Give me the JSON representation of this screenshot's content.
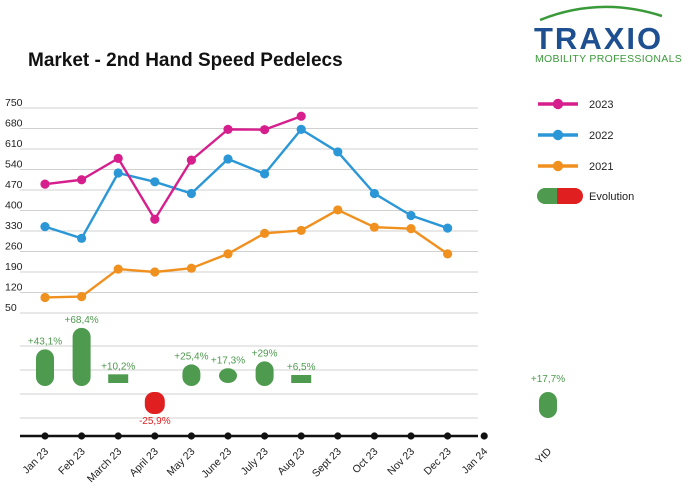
{
  "logo": {
    "name": "TRAXIO",
    "tagline": "MOBILITY PROFESSIONALS"
  },
  "chart_data": {
    "type": "line",
    "title": "Market - 2nd Hand Speed Pedelecs",
    "categories": [
      "Jan 23",
      "Feb 23",
      "March 23",
      "April 23",
      "May 23",
      "June 23",
      "July 23",
      "Aug 23",
      "Sept 23",
      "Oct 23",
      "Nov 23",
      "Dec 23",
      "Jan 24"
    ],
    "y_ticks": [
      750,
      680,
      610,
      540,
      470,
      400,
      330,
      260,
      190,
      120,
      50
    ],
    "ylim": [
      50,
      750
    ],
    "series": [
      {
        "name": "2023",
        "color": "#d61f8c",
        "values": [
          490,
          505,
          578,
          370,
          572,
          677,
          676,
          722,
          null,
          null,
          null,
          null,
          null
        ]
      },
      {
        "name": "2022",
        "color": "#2b97d6",
        "values": [
          345,
          305,
          528,
          498,
          458,
          576,
          525,
          677,
          600,
          458,
          383,
          340,
          null
        ]
      },
      {
        "name": "2021",
        "color": "#f0901e",
        "values": [
          103,
          106,
          200,
          190,
          203,
          252,
          322,
          332,
          402,
          343,
          338,
          252,
          null
        ]
      }
    ],
    "evolution": {
      "legend_label": "Evolution",
      "positive_color": "#4e9a4e",
      "negative_color": "#e02020",
      "items": [
        {
          "category": "Jan 23",
          "label": "+43,1%",
          "value": 43.1
        },
        {
          "category": "Feb 23",
          "label": "+68,4%",
          "value": 68.4
        },
        {
          "category": "March 23",
          "label": "+10,2%",
          "value": 10.2
        },
        {
          "category": "April 23",
          "label": "-25,9%",
          "value": -25.9
        },
        {
          "category": "May 23",
          "label": "+25,4%",
          "value": 25.4
        },
        {
          "category": "June 23",
          "label": "+17,3%",
          "value": 17.3
        },
        {
          "category": "July 23",
          "label": "+29%",
          "value": 29
        },
        {
          "category": "Aug 23",
          "label": "+6,5%",
          "value": 6.5
        }
      ],
      "ytd": {
        "category": "YtD",
        "label": "+17,7%",
        "value": 17.7
      }
    },
    "legend_position": "right",
    "grid": "horizontal"
  }
}
